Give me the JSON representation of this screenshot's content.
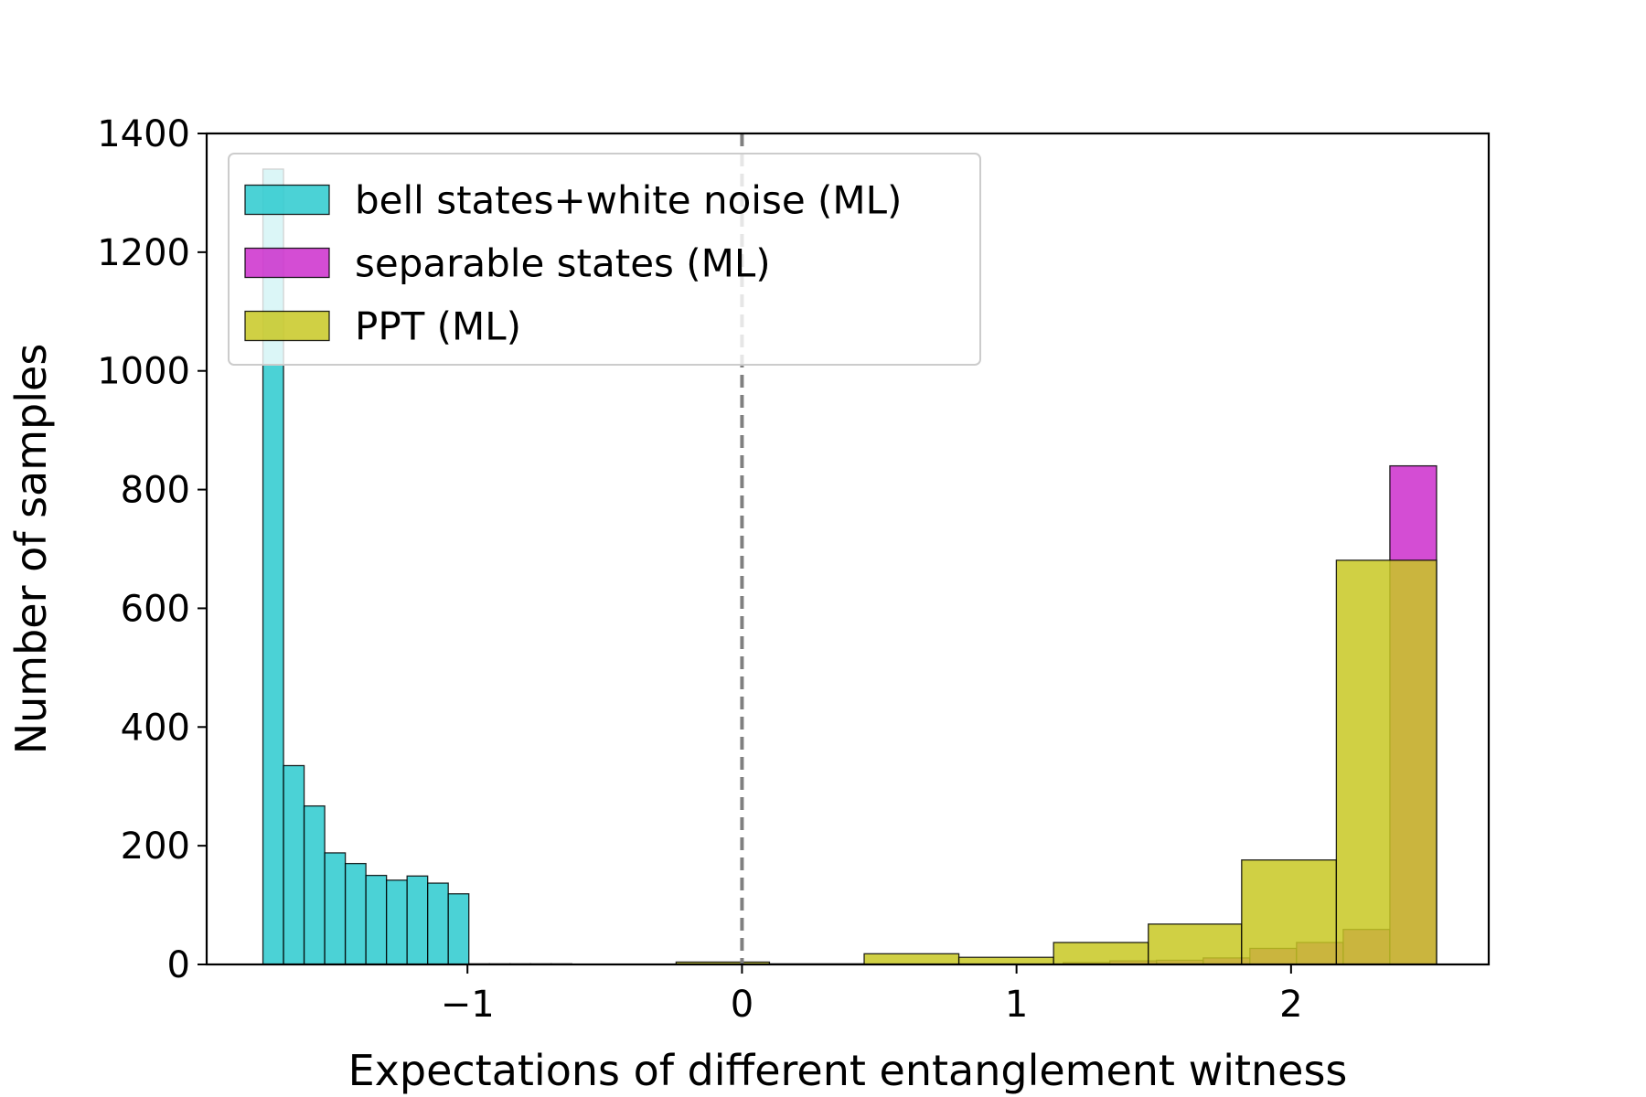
{
  "chart_data": {
    "type": "bar",
    "xlabel": "Expectations of different entanglement witness",
    "ylabel": "Number of samples",
    "xlim": [
      -1.95,
      2.72
    ],
    "ylim": [
      0,
      1400
    ],
    "x_ticks": [
      {
        "value": -1,
        "label": "−1"
      },
      {
        "value": 0,
        "label": "0"
      },
      {
        "value": 1,
        "label": "1"
      },
      {
        "value": 2,
        "label": "2"
      }
    ],
    "y_ticks": [
      {
        "value": 0,
        "label": "0"
      },
      {
        "value": 200,
        "label": "200"
      },
      {
        "value": 400,
        "label": "400"
      },
      {
        "value": 600,
        "label": "600"
      },
      {
        "value": 800,
        "label": "800"
      },
      {
        "value": 1000,
        "label": "1000"
      },
      {
        "value": 1200,
        "label": "1200"
      },
      {
        "value": 1400,
        "label": "1400"
      }
    ],
    "grid": false,
    "legend_position": "top-left",
    "vline": {
      "x": 0,
      "style": "dashed",
      "color": "#808080"
    },
    "series": [
      {
        "name": "bell states+white noise (ML)",
        "color": "#2ccacf",
        "bins": [
          {
            "x0": -1.745,
            "x1": -1.67,
            "count": 1340
          },
          {
            "x0": -1.67,
            "x1": -1.595,
            "count": 335
          },
          {
            "x0": -1.595,
            "x1": -1.52,
            "count": 267
          },
          {
            "x0": -1.52,
            "x1": -1.445,
            "count": 188
          },
          {
            "x0": -1.445,
            "x1": -1.37,
            "count": 170
          },
          {
            "x0": -1.37,
            "x1": -1.295,
            "count": 150
          },
          {
            "x0": -1.295,
            "x1": -1.22,
            "count": 142
          },
          {
            "x0": -1.22,
            "x1": -1.145,
            "count": 149
          },
          {
            "x0": -1.145,
            "x1": -1.07,
            "count": 137
          },
          {
            "x0": -1.07,
            "x1": -0.995,
            "count": 119
          },
          {
            "x0": -0.995,
            "x1": -0.92,
            "count": 1
          },
          {
            "x0": -0.92,
            "x1": -0.845,
            "count": 1
          },
          {
            "x0": -0.845,
            "x1": -0.77,
            "count": 1
          },
          {
            "x0": -0.77,
            "x1": -0.695,
            "count": 1
          },
          {
            "x0": -0.695,
            "x1": -0.62,
            "count": 1
          }
        ]
      },
      {
        "name": "separable states (ML)",
        "color": "#cc2ecc",
        "bins": [
          {
            "x0": 1.17,
            "x1": 1.34,
            "count": 3
          },
          {
            "x0": 1.34,
            "x1": 1.51,
            "count": 6
          },
          {
            "x0": 1.51,
            "x1": 1.68,
            "count": 7
          },
          {
            "x0": 1.68,
            "x1": 1.85,
            "count": 11
          },
          {
            "x0": 1.85,
            "x1": 2.02,
            "count": 27
          },
          {
            "x0": 2.02,
            "x1": 2.19,
            "count": 37
          },
          {
            "x0": 2.19,
            "x1": 2.36,
            "count": 59
          },
          {
            "x0": 2.36,
            "x1": 2.53,
            "count": 840
          }
        ]
      },
      {
        "name": "PPT (ML)",
        "color": "#c8c823",
        "bins": [
          {
            "x0": -0.24,
            "x1": 0.1,
            "count": 4
          },
          {
            "x0": 0.1,
            "x1": 0.445,
            "count": 1
          },
          {
            "x0": 0.445,
            "x1": 0.79,
            "count": 18
          },
          {
            "x0": 0.79,
            "x1": 1.135,
            "count": 12
          },
          {
            "x0": 1.135,
            "x1": 1.48,
            "count": 37
          },
          {
            "x0": 1.48,
            "x1": 1.82,
            "count": 68
          },
          {
            "x0": 1.82,
            "x1": 2.165,
            "count": 176
          },
          {
            "x0": 2.165,
            "x1": 2.53,
            "count": 681
          }
        ]
      }
    ]
  }
}
